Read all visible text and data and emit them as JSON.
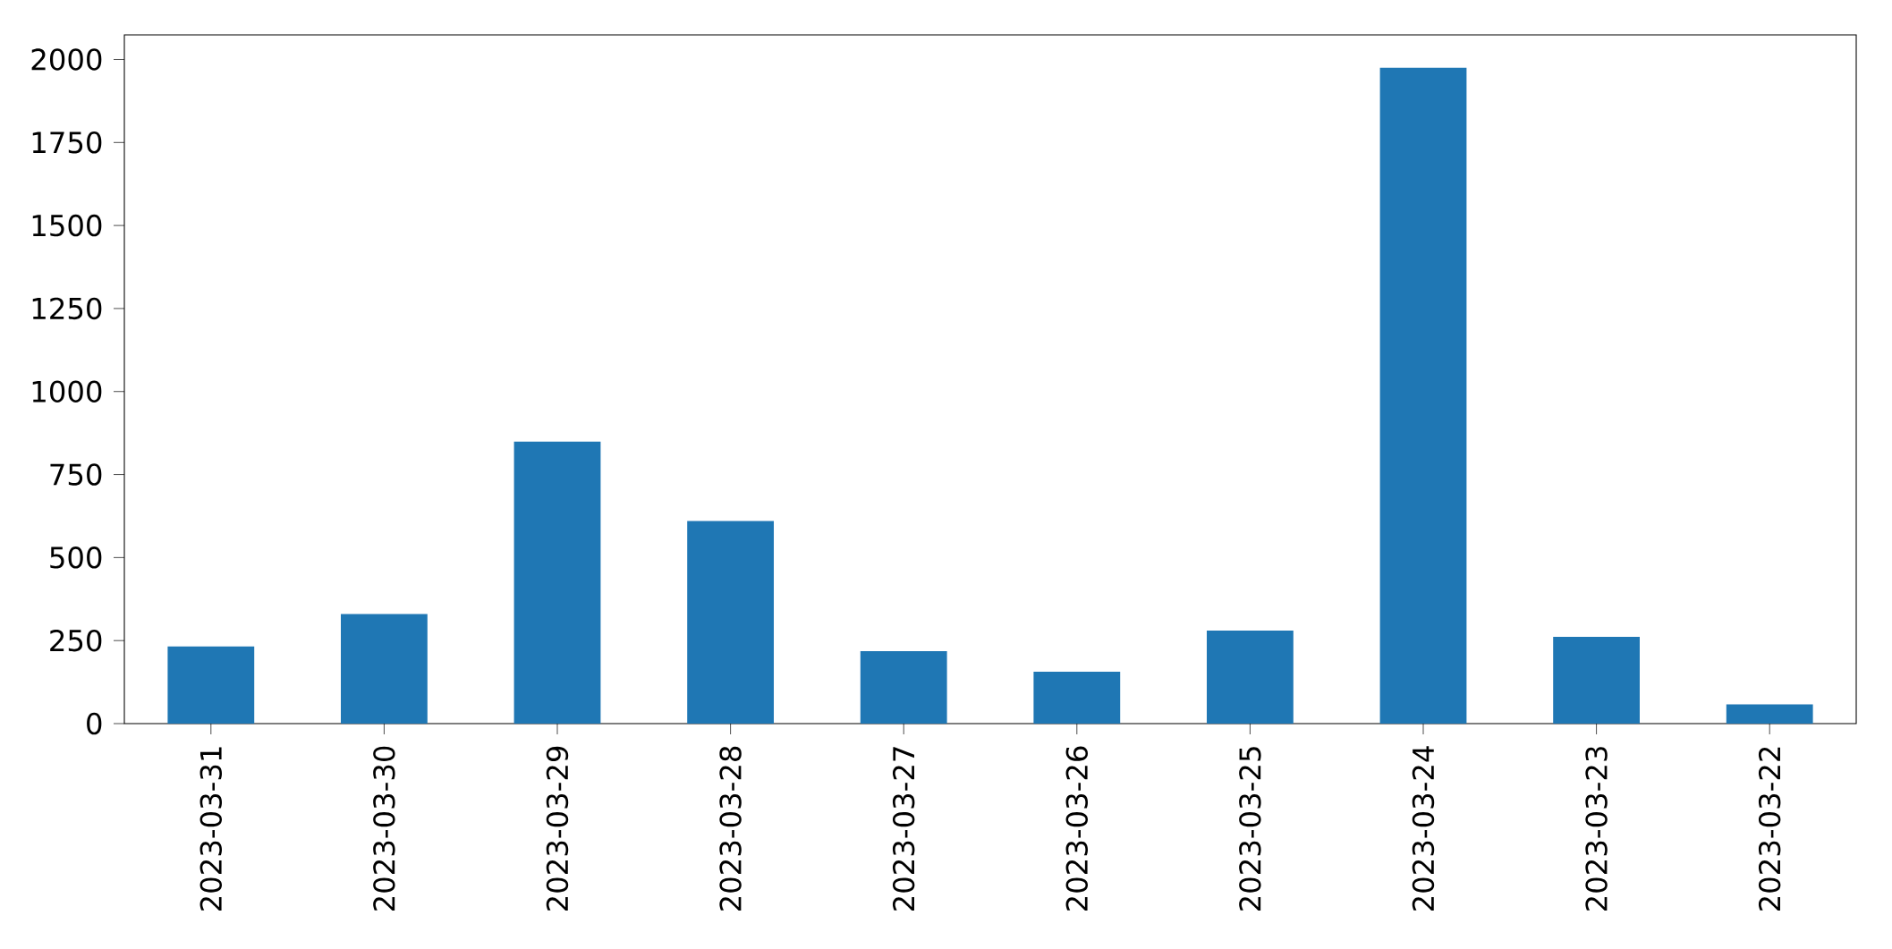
{
  "chart_data": {
    "type": "bar",
    "categories": [
      "2023-03-31",
      "2023-03-30",
      "2023-03-29",
      "2023-03-28",
      "2023-03-27",
      "2023-03-26",
      "2023-03-25",
      "2023-03-24",
      "2023-03-23",
      "2023-03-22"
    ],
    "values": [
      232,
      330,
      849,
      610,
      218,
      156,
      280,
      1975,
      261,
      58
    ],
    "color": "#1f77b4",
    "ylim": [
      0,
      2074
    ],
    "yticks": [
      0,
      250,
      500,
      750,
      1000,
      1250,
      1500,
      1750,
      2000
    ],
    "grid": false
  }
}
